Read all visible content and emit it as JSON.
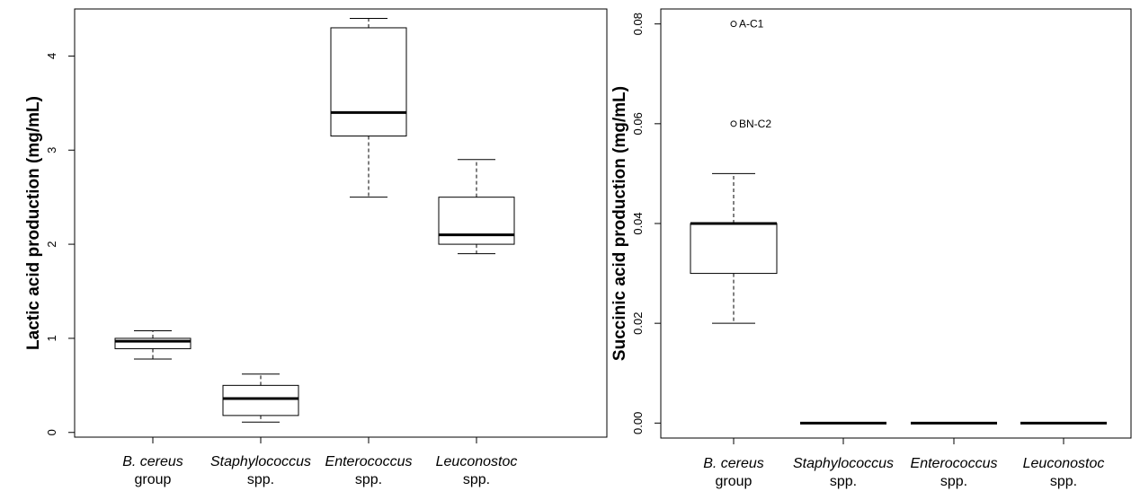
{
  "chart_data": [
    {
      "type": "box",
      "title": "",
      "xlabel": "",
      "ylabel": "Lactic acid production (mg/mL)",
      "ylim": [
        -0.05,
        4.5
      ],
      "yticks": [
        "0",
        "1",
        "2",
        "3",
        "4"
      ],
      "grid": false,
      "categories": [
        {
          "line1": "B. cereus",
          "line2": "group"
        },
        {
          "line1": "Staphylococcus",
          "line2": "spp."
        },
        {
          "line1": "Enterococcus",
          "line2": "spp."
        },
        {
          "line1": "Leuconostoc",
          "line2": "spp."
        }
      ],
      "boxes": [
        {
          "min": 0.78,
          "q1": 0.89,
          "median": 0.97,
          "q3": 1.0,
          "max": 1.08,
          "outliers": []
        },
        {
          "min": 0.11,
          "q1": 0.18,
          "median": 0.36,
          "q3": 0.5,
          "max": 0.62,
          "outliers": []
        },
        {
          "min": 2.5,
          "q1": 3.15,
          "median": 3.4,
          "q3": 4.3,
          "max": 4.4,
          "outliers": []
        },
        {
          "min": 1.9,
          "q1": 2.0,
          "median": 2.1,
          "q3": 2.5,
          "max": 2.9,
          "outliers": []
        }
      ]
    },
    {
      "type": "box",
      "title": "",
      "xlabel": "",
      "ylabel": "Succinic acid production (mg/mL)",
      "ylim": [
        -0.003,
        0.083
      ],
      "yticks": [
        "0.00",
        "0.02",
        "0.04",
        "0.06",
        "0.08"
      ],
      "grid": false,
      "categories": [
        {
          "line1": "B. cereus",
          "line2": "group"
        },
        {
          "line1": "Staphylococcus",
          "line2": "spp."
        },
        {
          "line1": "Enterococcus",
          "line2": "spp."
        },
        {
          "line1": "Leuconostoc",
          "line2": "spp."
        }
      ],
      "boxes": [
        {
          "min": 0.02,
          "q1": 0.03,
          "median": 0.04,
          "q3": 0.04,
          "max": 0.05,
          "outliers": [
            {
              "value": 0.08,
              "label": "A-C1"
            },
            {
              "value": 0.06,
              "label": "BN-C2"
            }
          ]
        },
        {
          "min": 0,
          "q1": 0,
          "median": 0,
          "q3": 0,
          "max": 0,
          "outliers": []
        },
        {
          "min": 0,
          "q1": 0,
          "median": 0,
          "q3": 0,
          "max": 0,
          "outliers": []
        },
        {
          "min": 0,
          "q1": 0,
          "median": 0,
          "q3": 0,
          "max": 0,
          "outliers": []
        }
      ]
    }
  ]
}
